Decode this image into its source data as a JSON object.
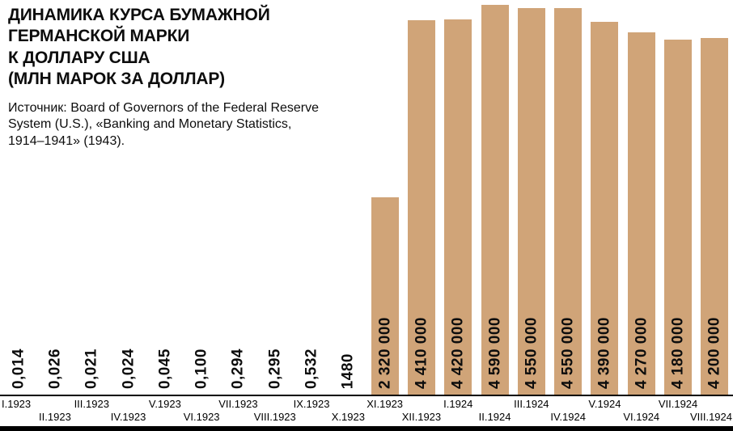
{
  "chart_data": {
    "type": "bar",
    "title": "ДИНАМИКА КУРСА БУМАЖНОЙ\nГЕРМАНСКОЙ МАРКИ\nК ДОЛЛАРУ США\n(МЛН МАРОК ЗА ДОЛЛАР)",
    "source": "Источник: Board of Governors of the Federal Reserve\nSystem (U.S.), «Banking and Monetary Statistics,\n1914–1941» (1943).",
    "categories": [
      "I.1923",
      "II.1923",
      "III.1923",
      "IV.1923",
      "V.1923",
      "VI.1923",
      "VII.1923",
      "VIII.1923",
      "IX.1923",
      "X.1923",
      "XI.1923",
      "XII.1923",
      "I.1924",
      "II.1924",
      "III.1924",
      "IV.1924",
      "V.1924",
      "VI.1924",
      "VII.1924",
      "VIII.1924"
    ],
    "values": [
      0.014,
      0.026,
      0.021,
      0.024,
      0.045,
      0.1,
      0.294,
      0.295,
      0.532,
      1480,
      2320000,
      4410000,
      4420000,
      4590000,
      4550000,
      4550000,
      4390000,
      4270000,
      4180000,
      4200000
    ],
    "value_labels": [
      "0,014",
      "0,026",
      "0,021",
      "0,024",
      "0,045",
      "0,100",
      "0,294",
      "0,295",
      "0,532",
      "1480",
      "2 320 000",
      "4 410 000",
      "4 420 000",
      "4 590 000",
      "4 550 000",
      "4 550 000",
      "4 390 000",
      "4 270 000",
      "4 180 000",
      "4 200 000"
    ],
    "ylim": [
      0,
      4590000
    ],
    "grid": false,
    "legend": "none",
    "bar_color": "#d0a478",
    "text_color": "#0d0d0d"
  }
}
